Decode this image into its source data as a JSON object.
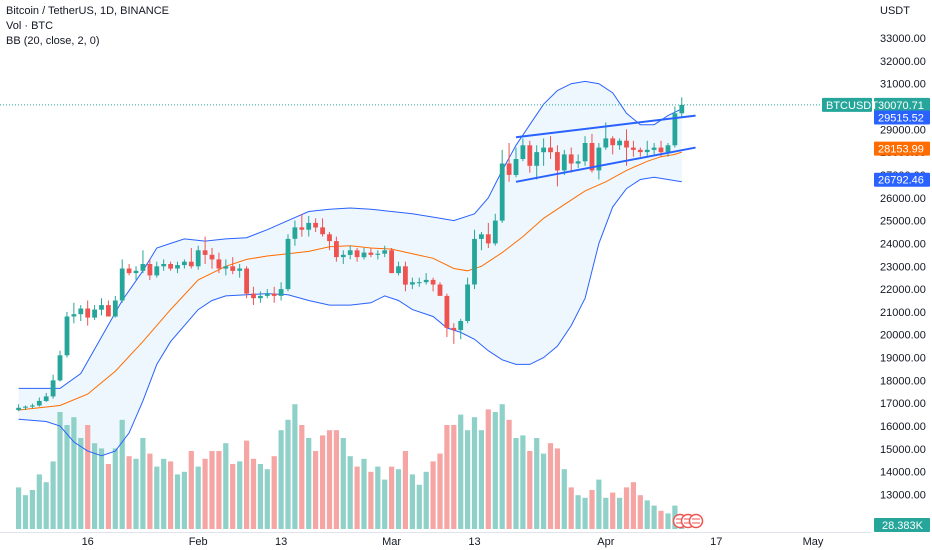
{
  "header": {
    "symbol_line": "Bitcoin / TetherUS, 1D, BINANCE",
    "volume_line": "Vol · BTC",
    "bb_line": "BB (20, close, 2, 0)"
  },
  "chart_data": {
    "type": "candlestick",
    "title": "Bitcoin / TetherUS, 1D, BINANCE",
    "quote_currency": "USDT",
    "ylim": [
      12500,
      34500
    ],
    "y_ticks": [
      13000,
      14000,
      15000,
      16000,
      17000,
      18000,
      19000,
      20000,
      21000,
      22000,
      23000,
      24000,
      25000,
      26000,
      27000,
      28000,
      29000,
      30000,
      31000,
      32000,
      33000
    ],
    "y_tick_labels": [
      "13000.00",
      "14000.00",
      "15000.00",
      "16000.00",
      "17000.00",
      "18000.00",
      "19000.00",
      "20000.00",
      "21000.00",
      "22000.00",
      "23000.00",
      "24000.00",
      "25000.00",
      "26000.00",
      "27000.00",
      "28000.00",
      "29000.00",
      "30000.00",
      "31000.00",
      "32000.00",
      "33000.00"
    ],
    "x_start": "2023-01-06",
    "x_end": "2023-05-05",
    "x_ticks": [
      {
        "date": "2023-01-16",
        "label": "16"
      },
      {
        "date": "2023-02-01",
        "label": "Feb"
      },
      {
        "date": "2023-02-13",
        "label": "13"
      },
      {
        "date": "2023-03-01",
        "label": "Mar"
      },
      {
        "date": "2023-03-13",
        "label": "13"
      },
      {
        "date": "2023-04-01",
        "label": "Apr"
      },
      {
        "date": "2023-04-17",
        "label": "17"
      },
      {
        "date": "2023-05-01",
        "label": "May"
      }
    ],
    "first_candle_date": "2023-01-06",
    "candles_ohlcv": [
      [
        16700,
        16950,
        16650,
        16800,
        1.6
      ],
      [
        16800,
        16900,
        16700,
        16850,
        1.3
      ],
      [
        16850,
        16980,
        16780,
        16900,
        1.5
      ],
      [
        16900,
        17250,
        16850,
        17100,
        2.1
      ],
      [
        17100,
        17450,
        17050,
        17300,
        1.8
      ],
      [
        17300,
        18250,
        17200,
        18000,
        2.6
      ],
      [
        18000,
        19300,
        17950,
        19100,
        4.5
      ],
      [
        19100,
        21000,
        19000,
        20800,
        4.0
      ],
      [
        20800,
        21400,
        20500,
        20900,
        4.3
      ],
      [
        20900,
        21300,
        20600,
        21150,
        3.5
      ],
      [
        21150,
        21500,
        20400,
        20750,
        4.0
      ],
      [
        20750,
        21300,
        20650,
        21100,
        3.3
      ],
      [
        21100,
        21600,
        20850,
        21300,
        3.1
      ],
      [
        21300,
        21500,
        20900,
        20800,
        2.5
      ],
      [
        20800,
        21700,
        20750,
        21500,
        3.1
      ],
      [
        21500,
        23300,
        21400,
        22900,
        4.2
      ],
      [
        22900,
        23100,
        22600,
        22700,
        2.8
      ],
      [
        22700,
        23000,
        22400,
        22800,
        2.7
      ],
      [
        22800,
        23700,
        22700,
        23100,
        3.5
      ],
      [
        23100,
        23300,
        22400,
        22600,
        2.9
      ],
      [
        22600,
        23200,
        22500,
        23000,
        2.4
      ],
      [
        23000,
        23300,
        22800,
        23100,
        2.7
      ],
      [
        23100,
        23200,
        22800,
        22900,
        2.6
      ],
      [
        22900,
        23200,
        22700,
        23050,
        2.1
      ],
      [
        23050,
        23300,
        22900,
        23200,
        2.2
      ],
      [
        23200,
        23800,
        22900,
        23000,
        3.0
      ],
      [
        23000,
        23900,
        22850,
        23700,
        2.4
      ],
      [
        23700,
        24300,
        23100,
        23500,
        2.7
      ],
      [
        23500,
        23800,
        22900,
        23300,
        3.0
      ],
      [
        23300,
        23600,
        22700,
        22900,
        3.0
      ],
      [
        22900,
        23300,
        22600,
        23000,
        3.3
      ],
      [
        23000,
        23400,
        22650,
        22800,
        2.5
      ],
      [
        22800,
        23100,
        22500,
        22900,
        2.6
      ],
      [
        22900,
        23000,
        21600,
        21800,
        3.4
      ],
      [
        21800,
        22100,
        21300,
        21600,
        2.7
      ],
      [
        21600,
        21900,
        21400,
        21700,
        2.5
      ],
      [
        21700,
        22000,
        21600,
        21800,
        2.3
      ],
      [
        21800,
        22100,
        21400,
        21700,
        2.8
      ],
      [
        21700,
        22300,
        21500,
        22000,
        3.8
      ],
      [
        22000,
        24400,
        21900,
        24200,
        4.2
      ],
      [
        24200,
        25000,
        23900,
        24700,
        4.8
      ],
      [
        24700,
        25300,
        24300,
        24600,
        4.0
      ],
      [
        24600,
        25200,
        24300,
        24900,
        3.5
      ],
      [
        24900,
        25100,
        24500,
        24700,
        3.0
      ],
      [
        24700,
        25100,
        24300,
        24400,
        3.6
      ],
      [
        24400,
        24500,
        23700,
        24100,
        3.8
      ],
      [
        24100,
        24300,
        23200,
        23400,
        3.8
      ],
      [
        23400,
        23700,
        23100,
        23500,
        3.5
      ],
      [
        23500,
        23900,
        23300,
        23700,
        2.8
      ],
      [
        23700,
        23800,
        23200,
        23400,
        2.4
      ],
      [
        23400,
        23800,
        23300,
        23600,
        2.7
      ],
      [
        23600,
        23800,
        23400,
        23500,
        2.2
      ],
      [
        23500,
        23700,
        23300,
        23550,
        2.4
      ],
      [
        23550,
        23900,
        23400,
        23700,
        1.9
      ],
      [
        23700,
        23800,
        22700,
        22700,
        2.4
      ],
      [
        22700,
        23200,
        22600,
        23000,
        2.3
      ],
      [
        23000,
        23200,
        21900,
        22200,
        3.0
      ],
      [
        22200,
        22500,
        22000,
        22300,
        2.1
      ],
      [
        22300,
        22500,
        22100,
        22300,
        1.7
      ],
      [
        22300,
        22700,
        22200,
        22400,
        2.2
      ],
      [
        22400,
        22500,
        21900,
        22200,
        2.6
      ],
      [
        22200,
        22300,
        21800,
        21700,
        2.9
      ],
      [
        21700,
        21800,
        19900,
        20300,
        4.0
      ],
      [
        20300,
        20500,
        19600,
        20200,
        4.0
      ],
      [
        20200,
        20700,
        19800,
        20600,
        4.4
      ],
      [
        20600,
        22500,
        20500,
        22200,
        3.8
      ],
      [
        22200,
        24600,
        22000,
        24200,
        4.3
      ],
      [
        24200,
        24500,
        23700,
        24400,
        3.8
      ],
      [
        24400,
        24900,
        23800,
        24000,
        4.6
      ],
      [
        24000,
        25300,
        23900,
        25000,
        4.5
      ],
      [
        25000,
        28100,
        24900,
        27500,
        4.8
      ],
      [
        27500,
        28400,
        26700,
        27000,
        4.2
      ],
      [
        27000,
        28200,
        26900,
        27700,
        3.5
      ],
      [
        27700,
        28600,
        27600,
        28300,
        3.6
      ],
      [
        28300,
        28500,
        27100,
        27400,
        3.0
      ],
      [
        27400,
        28300,
        26800,
        28000,
        3.5
      ],
      [
        28000,
        28600,
        27400,
        28200,
        2.9
      ],
      [
        28200,
        28700,
        27700,
        28000,
        3.3
      ],
      [
        28000,
        28300,
        26500,
        27200,
        3.1
      ],
      [
        27200,
        28100,
        27000,
        27900,
        2.3
      ],
      [
        27900,
        28200,
        27100,
        27500,
        1.6
      ],
      [
        27500,
        27900,
        27300,
        27600,
        1.3
      ],
      [
        27600,
        28700,
        27400,
        28400,
        1.2
      ],
      [
        28400,
        28800,
        27100,
        27200,
        1.5
      ],
      [
        27200,
        28400,
        26800,
        28200,
        1.9
      ],
      [
        28200,
        29300,
        28100,
        28600,
        1.2
      ],
      [
        28600,
        28700,
        27900,
        28300,
        1.4
      ],
      [
        28300,
        28600,
        28100,
        28500,
        1.2
      ],
      [
        28500,
        29000,
        27400,
        28200,
        1.6
      ],
      [
        28200,
        28500,
        27800,
        28100,
        1.8
      ],
      [
        28100,
        28200,
        27800,
        28000,
        1.3
      ],
      [
        28000,
        28500,
        27800,
        28100,
        1.1
      ],
      [
        28100,
        28400,
        27900,
        28200,
        0.9
      ],
      [
        28200,
        28500,
        27800,
        28000,
        0.7
      ],
      [
        28000,
        28400,
        27800,
        28300,
        0.6
      ],
      [
        28300,
        30000,
        28200,
        29700,
        0.9
      ],
      [
        29700,
        30400,
        29500,
        30070,
        0.5
      ]
    ],
    "volume_scale_max": 5.0,
    "bollinger_bands": {
      "upper": [
        [
          0,
          17650
        ],
        [
          6,
          17650
        ],
        [
          9,
          18300
        ],
        [
          12,
          19900
        ],
        [
          15,
          21500
        ],
        [
          18,
          22800
        ],
        [
          20,
          23800
        ],
        [
          22,
          24000
        ],
        [
          24,
          24200
        ],
        [
          27,
          24100
        ],
        [
          30,
          24200
        ],
        [
          33,
          24250
        ],
        [
          36,
          24600
        ],
        [
          39,
          25000
        ],
        [
          42,
          25400
        ],
        [
          45,
          25500
        ],
        [
          48,
          25550
        ],
        [
          51,
          25500
        ],
        [
          54,
          25400
        ],
        [
          57,
          25300
        ],
        [
          59,
          25200
        ],
        [
          61,
          25100
        ],
        [
          63,
          25000
        ],
        [
          66,
          25300
        ],
        [
          68,
          26000
        ],
        [
          70,
          27200
        ],
        [
          72,
          28300
        ],
        [
          74,
          29200
        ],
        [
          76,
          30100
        ],
        [
          78,
          30700
        ],
        [
          80,
          31000
        ],
        [
          82,
          31100
        ],
        [
          84,
          31000
        ],
        [
          86,
          30600
        ],
        [
          88,
          29700
        ],
        [
          90,
          29200
        ],
        [
          92,
          29200
        ],
        [
          94,
          29600
        ],
        [
          96,
          29900
        ]
      ],
      "middle": [
        [
          0,
          16700
        ],
        [
          6,
          16900
        ],
        [
          10,
          17400
        ],
        [
          14,
          18400
        ],
        [
          18,
          19700
        ],
        [
          22,
          21100
        ],
        [
          26,
          22400
        ],
        [
          30,
          23000
        ],
        [
          33,
          23300
        ],
        [
          36,
          23450
        ],
        [
          39,
          23550
        ],
        [
          42,
          23650
        ],
        [
          45,
          23850
        ],
        [
          48,
          23900
        ],
        [
          51,
          23800
        ],
        [
          54,
          23750
        ],
        [
          57,
          23550
        ],
        [
          60,
          23350
        ],
        [
          63,
          22900
        ],
        [
          65,
          22800
        ],
        [
          67,
          23000
        ],
        [
          70,
          23600
        ],
        [
          73,
          24300
        ],
        [
          76,
          25100
        ],
        [
          79,
          25700
        ],
        [
          82,
          26300
        ],
        [
          85,
          26700
        ],
        [
          88,
          27200
        ],
        [
          91,
          27600
        ],
        [
          93,
          27800
        ],
        [
          95,
          27900
        ],
        [
          96,
          28000
        ]
      ],
      "lower": [
        [
          0,
          16300
        ],
        [
          4,
          16200
        ],
        [
          6,
          16000
        ],
        [
          8,
          15300
        ],
        [
          10,
          14900
        ],
        [
          12,
          14700
        ],
        [
          14,
          14900
        ],
        [
          16,
          15700
        ],
        [
          18,
          17100
        ],
        [
          20,
          18700
        ],
        [
          22,
          19700
        ],
        [
          24,
          20400
        ],
        [
          26,
          21100
        ],
        [
          28,
          21500
        ],
        [
          30,
          21700
        ],
        [
          33,
          21750
        ],
        [
          36,
          21800
        ],
        [
          39,
          21750
        ],
        [
          42,
          21500
        ],
        [
          45,
          21300
        ],
        [
          48,
          21300
        ],
        [
          51,
          21400
        ],
        [
          53,
          21700
        ],
        [
          55,
          21500
        ],
        [
          57,
          21100
        ],
        [
          60,
          20800
        ],
        [
          62,
          20300
        ],
        [
          64,
          20100
        ],
        [
          66,
          19800
        ],
        [
          68,
          19300
        ],
        [
          70,
          18900
        ],
        [
          72,
          18700
        ],
        [
          74,
          18700
        ],
        [
          76,
          19000
        ],
        [
          78,
          19500
        ],
        [
          80,
          20400
        ],
        [
          82,
          21600
        ],
        [
          84,
          24000
        ],
        [
          86,
          25600
        ],
        [
          88,
          26400
        ],
        [
          90,
          26800
        ],
        [
          92,
          26900
        ],
        [
          94,
          26800
        ],
        [
          96,
          26700
        ]
      ]
    },
    "trendlines": [
      {
        "from": [
          "2023-03-19",
          28650
        ],
        "to": [
          "2023-04-14",
          29600
        ]
      },
      {
        "from": [
          "2023-03-19",
          26700
        ],
        "to": [
          "2023-04-14",
          28200
        ]
      }
    ],
    "price_tags": [
      {
        "label": "BTCUSDT",
        "value_label": "30070.71",
        "value": 30070.71,
        "color": "#26a69a",
        "with_name": true
      },
      {
        "label": "",
        "value_label": "29515.52",
        "value": 29515.52,
        "color": "#2962ff",
        "with_name": false
      },
      {
        "label": "",
        "value_label": "28153.99",
        "value": 28153.99,
        "color": "#ff6d00",
        "with_name": false
      },
      {
        "label": "",
        "value_label": "26792.46",
        "value": 26792.46,
        "color": "#2962ff",
        "with_name": false
      }
    ],
    "volume_tag": {
      "value_label": "28.383K",
      "color": "#26a69a"
    },
    "colors": {
      "up": "#26a69a",
      "down": "#ef5350",
      "volume_up": "#8fd1c9",
      "volume_down": "#f5a5a3",
      "bb_upper_lower": "#2962ff",
      "bb_middle": "#ff6d00",
      "bb_fill": "#e3f2fd",
      "trendline": "#2962ff"
    },
    "grid": false,
    "last_price_dotted_line": true
  }
}
